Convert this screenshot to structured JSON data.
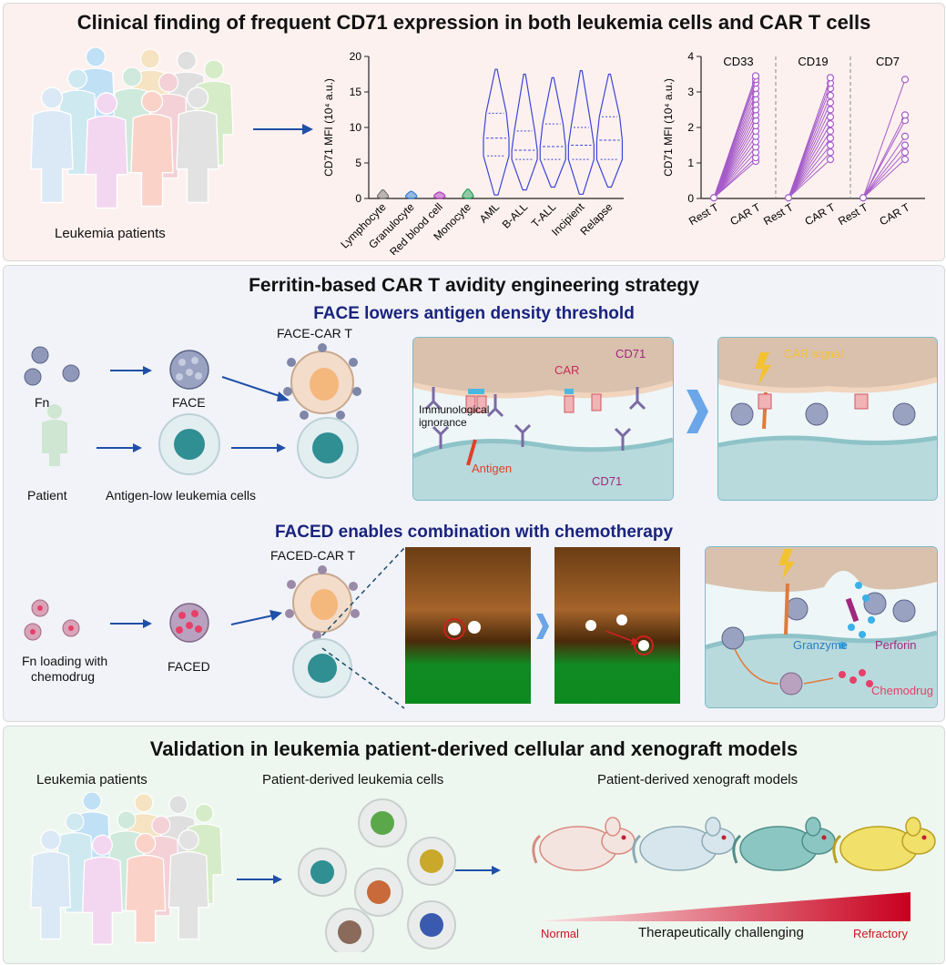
{
  "panel1": {
    "title": "Clinical finding of frequent CD71 expression in both leukemia cells and CAR T cells",
    "patients_label": "Leukemia patients"
  },
  "panel2": {
    "title": "Ferritin-based CAR T avidity engineering strategy",
    "face_heading": "FACE lowers antigen density threshold",
    "faced_heading": "FACED enables combination with chemotherapy",
    "labels": {
      "fn": "Fn",
      "face": "FACE",
      "face_car_t": "FACE-CAR T",
      "patient": "Patient",
      "antigen_low": "Antigen-low leukemia cells",
      "fn_loading_1": "Fn loading with",
      "fn_loading_2": "chemodrug",
      "faced": "FACED",
      "faced_car_t": "FACED-CAR T"
    },
    "box1": {
      "cd71_top": "CD71",
      "car": "CAR",
      "ignorance_1": "Immunological",
      "ignorance_2": "ignorance",
      "antigen": "Antigen",
      "cd71_bottom": "CD71"
    },
    "box2": {
      "car_signal": "CAR signal"
    },
    "box3": {
      "granzyme": "Granzyme",
      "perforin": "Perforin",
      "chemodrug": "Chemodrug"
    }
  },
  "panel3": {
    "title": "Validation in leukemia patient-derived cellular and xenograft models",
    "patients_label": "Leukemia patients",
    "cells_label": "Patient-derived leukemia cells",
    "xenograft_label": "Patient-derived xenograft models",
    "scale_low": "Normal",
    "scale_mid": "Therapeutically challenging",
    "scale_high": "Refractory"
  },
  "colors": {
    "violin": "#3a46d8",
    "paired": "#a55bc9",
    "arrow": "#1f4fa8",
    "heading": "#1a237e",
    "antigen": "#e0402a",
    "cd71": "#a0287f"
  },
  "chart_data": [
    {
      "type": "violin",
      "ylabel": "CD71 MFI (10⁴ a.u.)",
      "ylim": [
        0,
        20
      ],
      "yticks": [
        0,
        5,
        10,
        15,
        20
      ],
      "categories": [
        "Lymphocyte",
        "Granulocyte",
        "Red blood cell",
        "Monocyte",
        "AML",
        "B-ALL",
        "T-ALL",
        "Incipient",
        "Relapse"
      ],
      "series_colors": [
        "#777777",
        "#2f7fd0",
        "#b03cc0",
        "#2aa05a",
        "#3a46d8",
        "#3a46d8",
        "#3a46d8",
        "#3a46d8",
        "#3a46d8"
      ],
      "distributions": [
        {
          "min": 0,
          "q1": 0.2,
          "median": 0.4,
          "q3": 0.6,
          "max": 1.2
        },
        {
          "min": 0,
          "q1": 0.2,
          "median": 0.4,
          "q3": 0.6,
          "max": 1.0
        },
        {
          "min": 0,
          "q1": 0.2,
          "median": 0.4,
          "q3": 0.6,
          "max": 0.9
        },
        {
          "min": 0,
          "q1": 0.2,
          "median": 0.4,
          "q3": 0.7,
          "max": 1.3
        },
        {
          "min": 0.5,
          "q1": 6,
          "median": 8.5,
          "q3": 12,
          "max": 18.2
        },
        {
          "min": 1.2,
          "q1": 5.5,
          "median": 6.8,
          "q3": 9.5,
          "max": 17.5
        },
        {
          "min": 1.6,
          "q1": 5.5,
          "median": 7.3,
          "q3": 10.5,
          "max": 17
        },
        {
          "min": 0.6,
          "q1": 5.5,
          "median": 7.5,
          "q3": 10,
          "max": 18
        },
        {
          "min": 1.6,
          "q1": 5.5,
          "median": 8.2,
          "q3": 11.5,
          "max": 17.5
        }
      ]
    },
    {
      "type": "paired-line",
      "ylabel": "CD71 MFI (10⁴ a.u.)",
      "ylim": [
        0,
        4
      ],
      "yticks": [
        0,
        1,
        2,
        3,
        4
      ],
      "groups": [
        {
          "name": "CD33",
          "x": [
            "Rest T",
            "CAR T"
          ],
          "rest": 0.02,
          "car": [
            1.05,
            1.15,
            1.3,
            1.45,
            1.6,
            1.75,
            1.9,
            2.05,
            2.2,
            2.35,
            2.5,
            2.65,
            2.8,
            2.95,
            3.1,
            3.25,
            3.35,
            3.45
          ]
        },
        {
          "name": "CD19",
          "x": [
            "Rest T",
            "CAR T"
          ],
          "rest": 0.02,
          "car": [
            1.1,
            1.3,
            1.5,
            1.7,
            1.9,
            2.1,
            2.3,
            2.5,
            2.7,
            2.9,
            3.1,
            3.25,
            3.4
          ]
        },
        {
          "name": "CD7",
          "x": [
            "Rest T",
            "CAR T"
          ],
          "rest": 0.02,
          "car": [
            1.1,
            1.3,
            1.5,
            1.75,
            2.2,
            2.35,
            3.35
          ]
        }
      ]
    }
  ]
}
